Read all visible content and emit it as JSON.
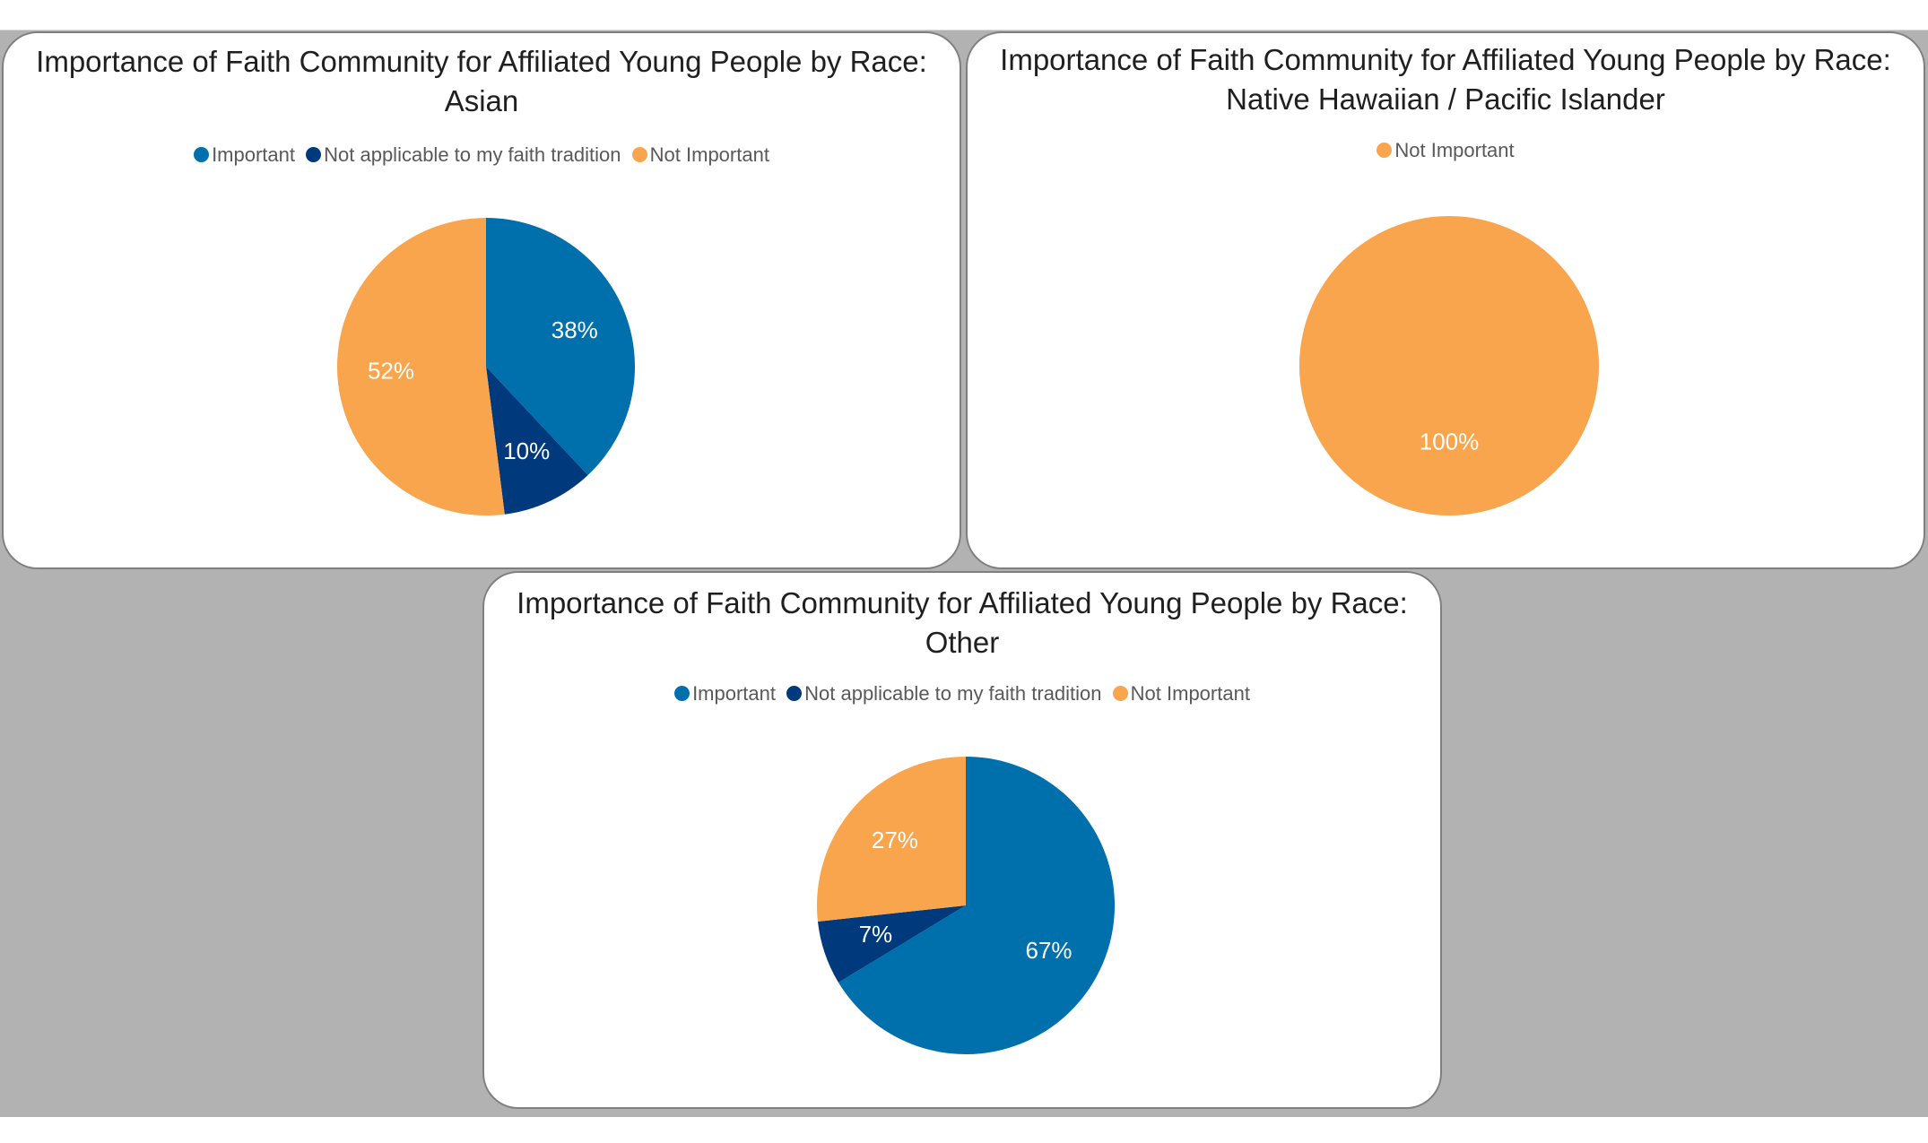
{
  "colors": {
    "important": "#0070ad",
    "not_applicable": "#003a7d",
    "not_important": "#f8a54e",
    "label_text": "#ffffff",
    "backdrop": "#b2b2b2"
  },
  "chart_data": [
    {
      "type": "pie",
      "title": "Importance of Faith Community for Affiliated Young People by Race:\nAsian",
      "legend": [
        "Important",
        "Not applicable to my faith tradition",
        "Not Important"
      ],
      "legend_position": "top",
      "slices": [
        {
          "category": "Important",
          "value": 38,
          "label": "38%"
        },
        {
          "category": "Not applicable to my faith tradition",
          "value": 10,
          "label": "10%"
        },
        {
          "category": "Not Important",
          "value": 52,
          "label": "52%"
        }
      ]
    },
    {
      "type": "pie",
      "title": "Importance of Faith Community for Affiliated Young People by Race:\nNative Hawaiian / Pacific Islander",
      "legend": [
        "Not Important"
      ],
      "legend_position": "top",
      "slices": [
        {
          "category": "Not Important",
          "value": 100,
          "label": "100%"
        }
      ]
    },
    {
      "type": "pie",
      "title": "Importance of Faith Community for Affiliated Young People by Race:\nOther",
      "legend": [
        "Important",
        "Not applicable to my faith tradition",
        "Not Important"
      ],
      "legend_position": "top",
      "slices": [
        {
          "category": "Important",
          "value": 67,
          "label": "67%"
        },
        {
          "category": "Not applicable to my faith tradition",
          "value": 7,
          "label": "7%"
        },
        {
          "category": "Not Important",
          "value": 27,
          "label": "27%"
        }
      ]
    }
  ]
}
